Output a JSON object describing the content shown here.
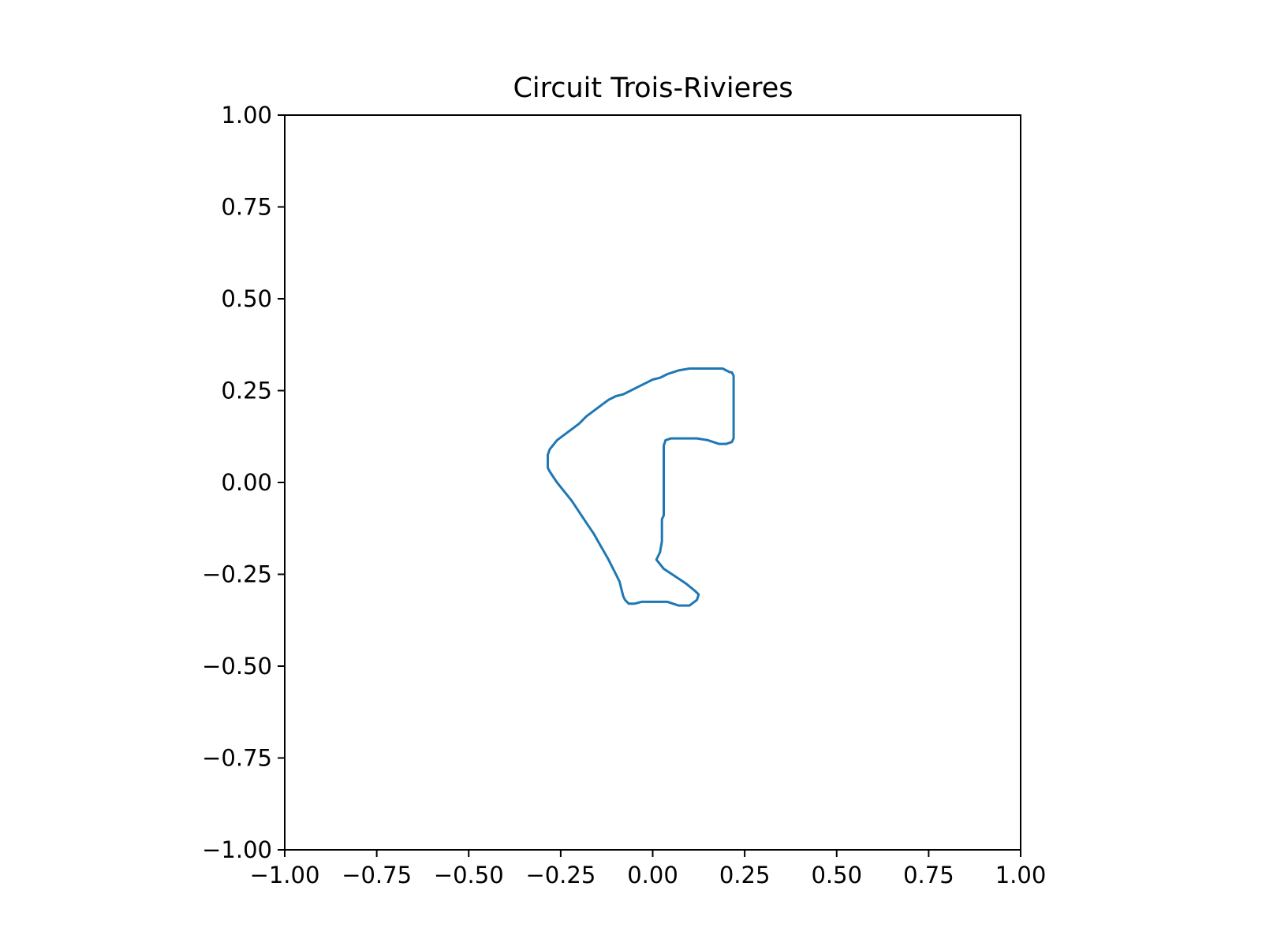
{
  "colors": {
    "background": "#ffffff",
    "axes": "#000000",
    "track": "#1f77b4"
  },
  "chart_data": {
    "type": "line",
    "title": "Circuit Trois-Rivieres",
    "xlabel": "",
    "ylabel": "",
    "xlim": [
      -1.0,
      1.0
    ],
    "ylim": [
      -1.0,
      1.0
    ],
    "grid": false,
    "legend": "none",
    "x_ticks": [
      -1.0,
      -0.75,
      -0.5,
      -0.25,
      0.0,
      0.25,
      0.5,
      0.75,
      1.0
    ],
    "y_ticks": [
      -1.0,
      -0.75,
      -0.5,
      -0.25,
      0.0,
      0.25,
      0.5,
      0.75,
      1.0
    ],
    "x_tick_labels": [
      "−1.00",
      "−0.75",
      "−0.50",
      "−0.25",
      "0.00",
      "0.25",
      "0.50",
      "0.75",
      "1.00"
    ],
    "y_tick_labels": [
      "−1.00",
      "−0.75",
      "−0.50",
      "−0.25",
      "0.00",
      "0.25",
      "0.50",
      "0.75",
      "1.00"
    ],
    "series": [
      {
        "x": [
          0.21,
          0.2,
          0.19,
          0.17,
          0.14,
          0.1,
          0.07,
          0.04,
          0.02,
          0.0,
          -0.02,
          -0.04,
          -0.06,
          -0.08,
          -0.1,
          -0.12,
          -0.14,
          -0.16,
          -0.18,
          -0.2,
          -0.22,
          -0.24,
          -0.26,
          -0.28,
          -0.285,
          -0.285,
          -0.28,
          -0.27,
          -0.26,
          -0.24,
          -0.22,
          -0.2,
          -0.18,
          -0.16,
          -0.14,
          -0.12,
          -0.1,
          -0.09,
          -0.085,
          -0.08,
          -0.075,
          -0.065,
          -0.05,
          -0.03,
          0.0,
          0.04,
          0.07,
          0.1,
          0.12,
          0.125,
          0.115,
          0.09,
          0.06,
          0.03,
          0.01,
          0.02,
          0.025,
          0.025,
          0.03,
          0.03,
          0.035,
          0.05,
          0.08,
          0.12,
          0.15,
          0.18,
          0.2,
          0.215,
          0.22,
          0.22,
          0.215,
          0.21
        ],
        "y": [
          0.3,
          0.305,
          0.31,
          0.31,
          0.31,
          0.31,
          0.305,
          0.295,
          0.285,
          0.28,
          0.27,
          0.26,
          0.25,
          0.24,
          0.235,
          0.225,
          0.21,
          0.195,
          0.18,
          0.16,
          0.145,
          0.13,
          0.115,
          0.09,
          0.075,
          0.04,
          0.03,
          0.015,
          0.0,
          -0.025,
          -0.05,
          -0.08,
          -0.11,
          -0.14,
          -0.175,
          -0.21,
          -0.25,
          -0.27,
          -0.29,
          -0.31,
          -0.32,
          -0.33,
          -0.33,
          -0.325,
          -0.325,
          -0.325,
          -0.335,
          -0.335,
          -0.32,
          -0.305,
          -0.295,
          -0.275,
          -0.255,
          -0.235,
          -0.21,
          -0.19,
          -0.16,
          -0.1,
          -0.09,
          0.1,
          0.115,
          0.12,
          0.12,
          0.12,
          0.115,
          0.105,
          0.105,
          0.11,
          0.12,
          0.29,
          0.3,
          0.3
        ]
      }
    ]
  }
}
